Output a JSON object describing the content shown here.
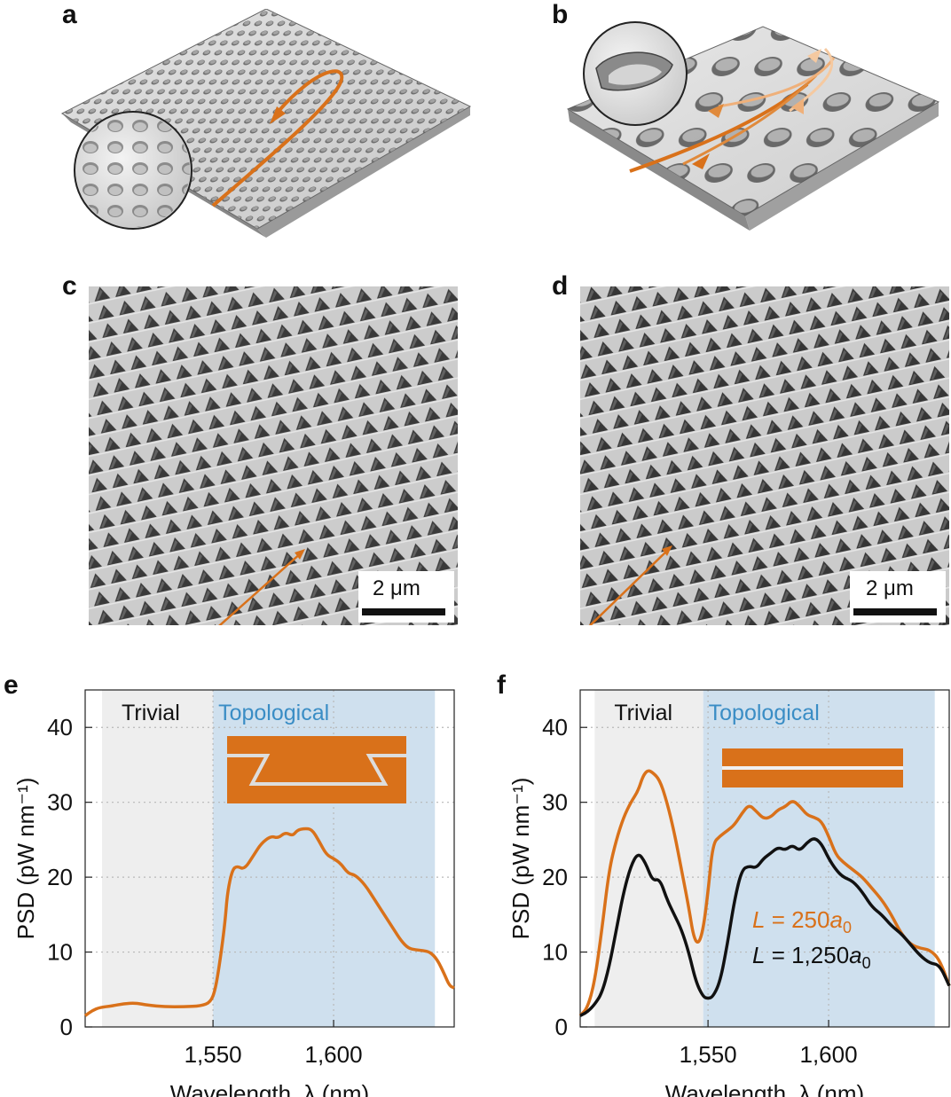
{
  "panels": {
    "a": "a",
    "b": "b",
    "c": "c",
    "d": "d",
    "e": "e",
    "f": "f"
  },
  "scalebar_c": "2 μm",
  "scalebar_d": "2 μm",
  "colors": {
    "orange": "#D9711A",
    "black": "#111111",
    "trivial_bg": "#EEEEEE",
    "topological_bg": "#CFE0EE",
    "topological_text": "#3A8DC5",
    "grid": "#B8B8B8"
  },
  "chart_data": [
    {
      "panel": "e",
      "type": "line",
      "xlabel": "Wavelength, λ (nm)",
      "ylabel": "PSD (pW nm⁻¹)",
      "xlim": [
        1497,
        1650
      ],
      "ylim": [
        0,
        45
      ],
      "xticks": [
        1550,
        1600
      ],
      "xtick_labels": [
        "1,550",
        "1,600"
      ],
      "yticks": [
        0,
        10,
        20,
        30,
        40
      ],
      "ytick_labels": [
        "0",
        "10",
        "20",
        "30",
        "40"
      ],
      "grid": true,
      "regions": [
        {
          "label": "Trivial",
          "from": 1504,
          "to": 1550
        },
        {
          "label": "Topological",
          "from": 1550,
          "to": 1642
        }
      ],
      "inset": "bent-waveguide",
      "series": [
        {
          "color": "#D9711A",
          "x": [
            1497,
            1500,
            1503,
            1508,
            1513,
            1518,
            1523,
            1530,
            1538,
            1545,
            1549,
            1551,
            1553,
            1555,
            1556,
            1558,
            1560,
            1563,
            1567,
            1570,
            1574,
            1577,
            1580,
            1583,
            1585,
            1588,
            1591,
            1594,
            1597,
            1600,
            1603,
            1606,
            1609,
            1613,
            1617,
            1621,
            1625,
            1628,
            1631,
            1634,
            1637,
            1640,
            1643,
            1646,
            1648,
            1650
          ],
          "y": [
            1.5,
            2.2,
            2.6,
            2.8,
            3.1,
            3.2,
            2.9,
            2.7,
            2.7,
            2.8,
            3.3,
            5,
            9,
            14,
            18,
            21,
            21.5,
            21,
            23,
            24.5,
            25.5,
            25.2,
            26,
            25.5,
            26.3,
            26.5,
            26.4,
            24.8,
            23,
            22.5,
            21.8,
            20.5,
            20.3,
            19,
            17,
            15,
            13,
            11.5,
            10.5,
            10.3,
            10.2,
            10,
            9,
            7,
            5.5,
            5.2
          ]
        }
      ]
    },
    {
      "panel": "f",
      "type": "line",
      "xlabel": "Wavelength, λ (nm)",
      "ylabel": "PSD (pW nm⁻¹)",
      "xlim": [
        1497,
        1650
      ],
      "ylim": [
        0,
        45
      ],
      "xticks": [
        1550,
        1600
      ],
      "xtick_labels": [
        "1,550",
        "1,600"
      ],
      "yticks": [
        0,
        10,
        20,
        30,
        40
      ],
      "ytick_labels": [
        "0",
        "10",
        "20",
        "30",
        "40"
      ],
      "grid": true,
      "regions": [
        {
          "label": "Trivial",
          "from": 1503,
          "to": 1548
        },
        {
          "label": "Topological",
          "from": 1548,
          "to": 1644
        }
      ],
      "inset": "straight-waveguide",
      "legend_placement": "bottom-right",
      "series": [
        {
          "name_parts": [
            "L",
            " = 250",
            "a",
            "0"
          ],
          "color": "#D9711A",
          "x": [
            1497,
            1500,
            1503,
            1506,
            1509,
            1512,
            1515,
            1518,
            1521,
            1523,
            1525,
            1527,
            1530,
            1533,
            1536,
            1539,
            1542,
            1544,
            1546,
            1548,
            1550,
            1552,
            1555,
            1558,
            1561,
            1564,
            1567,
            1570,
            1573,
            1576,
            1579,
            1582,
            1585,
            1588,
            1591,
            1594,
            1597,
            1600,
            1603,
            1606,
            1610,
            1614,
            1618,
            1622,
            1626,
            1630,
            1634,
            1638,
            1642,
            1646,
            1650
          ],
          "y": [
            1.5,
            2.5,
            6,
            13,
            21,
            25,
            28,
            30,
            31.5,
            33.5,
            34.3,
            34,
            33,
            30,
            26,
            21,
            16,
            12,
            11,
            13,
            18,
            24.5,
            25.5,
            26.2,
            27,
            28.5,
            29.7,
            28.8,
            27.8,
            28,
            29,
            29.4,
            30.3,
            29.5,
            28.3,
            28,
            27.5,
            25.5,
            23,
            22,
            21,
            20,
            18.5,
            17,
            15,
            12.5,
            11,
            10.5,
            10.3,
            9,
            5.5
          ]
        },
        {
          "name_parts": [
            "L",
            " = 1,250",
            "a",
            "0"
          ],
          "color": "#111111",
          "x": [
            1497,
            1500,
            1503,
            1506,
            1509,
            1512,
            1515,
            1518,
            1521,
            1524,
            1527,
            1530,
            1533,
            1536,
            1539,
            1542,
            1545,
            1548,
            1550,
            1552,
            1555,
            1558,
            1561,
            1564,
            1567,
            1570,
            1573,
            1576,
            1579,
            1582,
            1585,
            1588,
            1591,
            1594,
            1597,
            1600,
            1603,
            1606,
            1610,
            1614,
            1618,
            1622,
            1626,
            1630,
            1634,
            1638,
            1642,
            1646,
            1650
          ],
          "y": [
            1.5,
            2,
            3,
            4.5,
            8,
            13,
            18,
            21.5,
            23.3,
            22,
            19.5,
            19.8,
            17,
            15,
            13,
            10,
            6,
            4,
            3.8,
            4,
            6,
            11,
            17,
            21,
            21.5,
            21.2,
            22.5,
            23.2,
            24,
            23.6,
            24.3,
            23.5,
            24.6,
            25.3,
            24.5,
            22.5,
            21,
            20,
            19.5,
            18,
            16,
            15,
            13.5,
            12.5,
            11,
            9.5,
            8.5,
            8.3,
            5.5
          ]
        }
      ]
    }
  ]
}
